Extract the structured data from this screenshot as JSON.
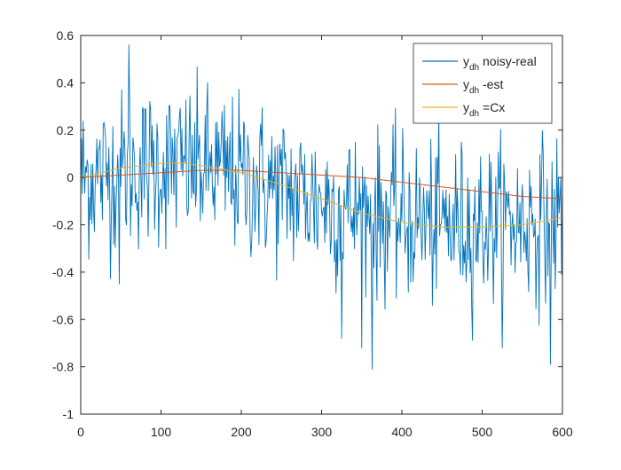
{
  "chart_data": {
    "type": "line",
    "title": "",
    "xlabel": "",
    "ylabel": "",
    "xlim": [
      0,
      600
    ],
    "ylim": [
      -1,
      0.6
    ],
    "x_ticks": [
      "0",
      "100",
      "200",
      "300",
      "400",
      "500",
      "600"
    ],
    "y_ticks": [
      "0.6",
      "0.4",
      "0.2",
      "0",
      "-0.2",
      "-0.4",
      "-0.6",
      "-0.8",
      "-1"
    ],
    "grid": false,
    "legend_position": "top-right",
    "series": [
      {
        "name": "y_dh noisy-real",
        "legend_main": "y",
        "legend_sub": "dh",
        "legend_rest": " noisy-real",
        "color": "#0072BD",
        "sample_count": 600,
        "trend_x": [
          0,
          100,
          160,
          250,
          350,
          450,
          550,
          600
        ],
        "trend_y": [
          0.0,
          0.05,
          0.04,
          -0.05,
          -0.15,
          -0.2,
          -0.19,
          -0.16
        ],
        "noise_std": 0.17,
        "notable_points": [
          {
            "x": 60,
            "y": 0.56
          },
          {
            "x": 48,
            "y": -0.45
          },
          {
            "x": 325,
            "y": -0.68
          },
          {
            "x": 363,
            "y": -0.81
          },
          {
            "x": 585,
            "y": -0.79
          },
          {
            "x": 620,
            "y": 0.0
          }
        ]
      },
      {
        "name": "y_dh -est",
        "legend_main": "y",
        "legend_sub": "dh",
        "legend_rest": " -est",
        "color": "#D95319",
        "x": [
          0,
          50,
          100,
          150,
          200,
          250,
          300,
          350,
          400,
          450,
          500,
          550,
          600
        ],
        "y": [
          0.0,
          0.01,
          0.02,
          0.03,
          0.03,
          0.02,
          0.01,
          0.0,
          -0.02,
          -0.04,
          -0.06,
          -0.08,
          -0.09
        ]
      },
      {
        "name": "y_dh =Cx",
        "legend_main": "y",
        "legend_sub": "dh",
        "legend_rest": " =Cx",
        "color": "#EDB120",
        "x": [
          0,
          50,
          100,
          130,
          150,
          200,
          250,
          300,
          350,
          400,
          450,
          500,
          550,
          600
        ],
        "y": [
          0.0,
          0.04,
          0.06,
          0.06,
          0.05,
          0.02,
          -0.03,
          -0.09,
          -0.15,
          -0.19,
          -0.21,
          -0.21,
          -0.2,
          -0.17
        ]
      }
    ]
  }
}
